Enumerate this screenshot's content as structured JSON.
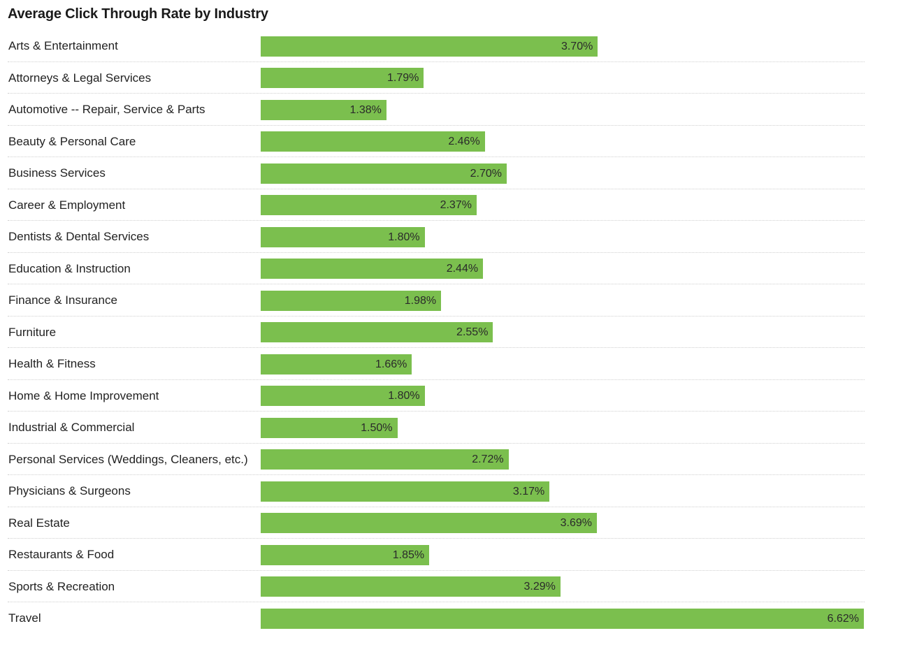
{
  "chart_data": {
    "type": "bar",
    "orientation": "horizontal",
    "title": "Average Click Through Rate by Industry",
    "xlabel": "",
    "ylabel": "",
    "xlim": [
      0,
      6.62
    ],
    "unit": "%",
    "bar_color": "#7bbf4e",
    "grid": false,
    "categories": [
      "Arts & Entertainment",
      "Attorneys & Legal Services",
      "Automotive -- Repair, Service & Parts",
      "Beauty & Personal Care",
      "Business Services",
      "Career & Employment",
      "Dentists & Dental Services",
      "Education & Instruction",
      "Finance & Insurance",
      "Furniture",
      "Health & Fitness",
      "Home & Home Improvement",
      "Industrial & Commercial",
      "Personal Services (Weddings, Cleaners, etc.)",
      "Physicians & Surgeons",
      "Real Estate",
      "Restaurants & Food",
      "Sports & Recreation",
      "Travel"
    ],
    "values": [
      3.7,
      1.79,
      1.38,
      2.46,
      2.7,
      2.37,
      1.8,
      2.44,
      1.98,
      2.55,
      1.66,
      1.8,
      1.5,
      2.72,
      3.17,
      3.69,
      1.85,
      3.29,
      6.62
    ],
    "labels": [
      "3.70%",
      "1.79%",
      "1.38%",
      "2.46%",
      "2.70%",
      "2.37%",
      "1.80%",
      "2.44%",
      "1.98%",
      "2.55%",
      "1.66%",
      "1.80%",
      "1.50%",
      "2.72%",
      "3.17%",
      "3.69%",
      "1.85%",
      "3.29%",
      "6.62%"
    ]
  }
}
